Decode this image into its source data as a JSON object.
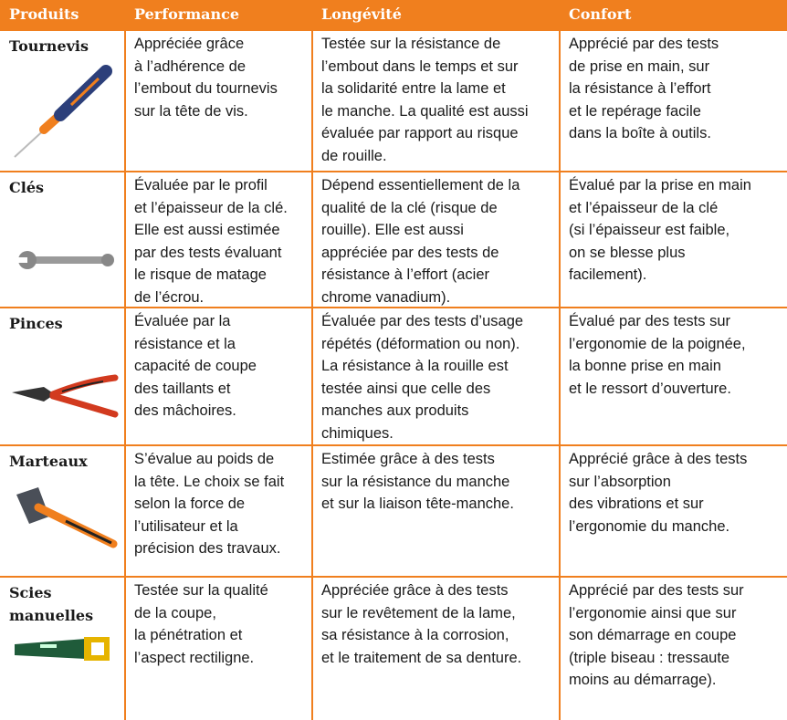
{
  "header": {
    "columns": [
      "Produits",
      "Performance",
      "Longévité",
      "Confort"
    ]
  },
  "table": {
    "rows": [
      {
        "product": [
          "Tournevis"
        ],
        "cells": [
          [
            "Appréciée grâce",
            "à l’adhérence de",
            "l’embout du tournevis",
            "sur la tête de vis."
          ],
          [
            "Testée sur la résistance de",
            "l’embout dans le temps et sur",
            "la solidarité entre la lame et",
            "le manche. La qualité est aussi",
            "évaluée par rapport au risque",
            "de rouille."
          ],
          [
            "Apprécié par des tests",
            "de prise en main, sur",
            "la résistance à l’effort",
            "et le repérage facile",
            "dans la boîte à outils."
          ]
        ]
      },
      {
        "product": [
          "Clés"
        ],
        "cells": [
          [
            "Évaluée par le profil",
            "et l’épaisseur de la clé.",
            "Elle est aussi estimée",
            "par des tests évaluant",
            "le risque de matage",
            "de l’écrou."
          ],
          [
            "Dépend essentiellement de la",
            "qualité de la clé (risque de",
            "rouille). Elle est aussi",
            "appréciée par des tests de",
            "résistance à l’effort (acier",
            "chrome vanadium)."
          ],
          [
            "Évalué par la prise en main",
            "et l’épaisseur de la clé",
            "(si l’épaisseur est faible,",
            "on se blesse plus",
            "facilement)."
          ]
        ]
      },
      {
        "product": [
          "Pinces"
        ],
        "cells": [
          [
            "Évaluée par la",
            "résistance et la",
            "capacité de coupe",
            "des taillants et",
            "des mâchoires."
          ],
          [
            "Évaluée par des tests d’usage",
            "répétés (déformation ou non).",
            "La résistance à la rouille est",
            "testée ainsi que celle des",
            "manches aux produits",
            "chimiques."
          ],
          [
            "Évalué par des tests sur",
            "l’ergonomie de la poignée,",
            "la bonne prise en main",
            "et le ressort d’ouverture."
          ]
        ]
      },
      {
        "product": [
          "Marteaux"
        ],
        "cells": [
          [
            "S’évalue au poids de",
            "la tête. Le choix se fait",
            "selon la force de",
            "l’utilisateur et la",
            "précision des travaux."
          ],
          [
            "Estimée grâce à des tests",
            "sur la résistance du manche",
            "et sur la liaison tête-manche."
          ],
          [
            "Apprécié grâce à des tests",
            "sur l’absorption",
            "des vibrations et sur",
            "l’ergonomie du manche."
          ]
        ]
      },
      {
        "product": [
          "Scies",
          "manuelles"
        ],
        "cells": [
          [
            "Testée sur la qualité",
            "de la coupe,",
            "la pénétration et",
            "l’aspect rectiligne."
          ],
          [
            "Appréciée grâce à des tests",
            "sur le revêtement de la lame,",
            "sa résistance à la corrosion,",
            "et le traitement de sa denture."
          ],
          [
            "Apprécié par des tests sur",
            "l’ergonomie ainsi que sur",
            "son démarrage en coupe",
            "(triple biseau : tressaute",
            "moins au démarrage)."
          ]
        ]
      }
    ]
  }
}
